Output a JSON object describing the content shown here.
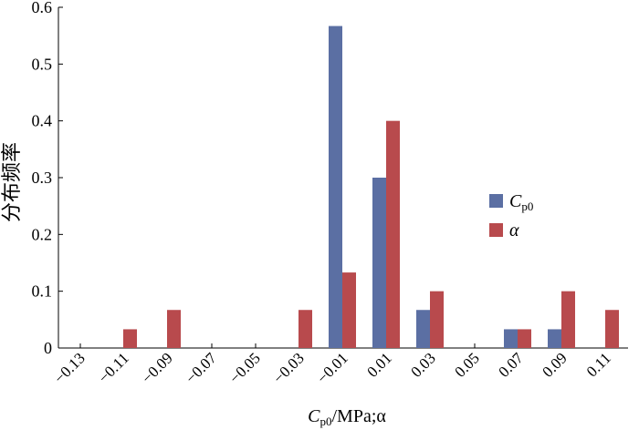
{
  "chart_data": {
    "type": "bar",
    "title": "",
    "xlabel": "C_p0/MPa;α",
    "xlabel_parts": {
      "main": "C",
      "sub": "p0",
      "rest": "/MPa;α"
    },
    "ylabel": "分布频率",
    "ylim": [
      0,
      0.6
    ],
    "y_ticks": [
      "0",
      "0.1",
      "0.2",
      "0.3",
      "0.4",
      "0.5",
      "0.6"
    ],
    "categories": [
      "−0.13",
      "−0.11",
      "−0.09",
      "−0.07",
      "−0.05",
      "−0.03",
      "−0.01",
      "0.01",
      "0.03",
      "0.05",
      "0.07",
      "0.09",
      "0.11"
    ],
    "series": [
      {
        "name": "C_p0",
        "legend_main": "C",
        "legend_sub": "p0",
        "color": "#5b6fa3",
        "values": [
          0,
          0,
          0,
          0,
          0,
          0,
          0.567,
          0.3,
          0.067,
          0,
          0.033,
          0.033,
          0
        ]
      },
      {
        "name": "α",
        "legend_main": "α",
        "legend_sub": "",
        "color": "#b84a4d",
        "values": [
          0,
          0.033,
          0.067,
          0,
          0,
          0.067,
          0.133,
          0.4,
          0.1,
          0,
          0.033,
          0.1,
          0.067
        ]
      }
    ],
    "grid": false,
    "legend_position": "right"
  }
}
